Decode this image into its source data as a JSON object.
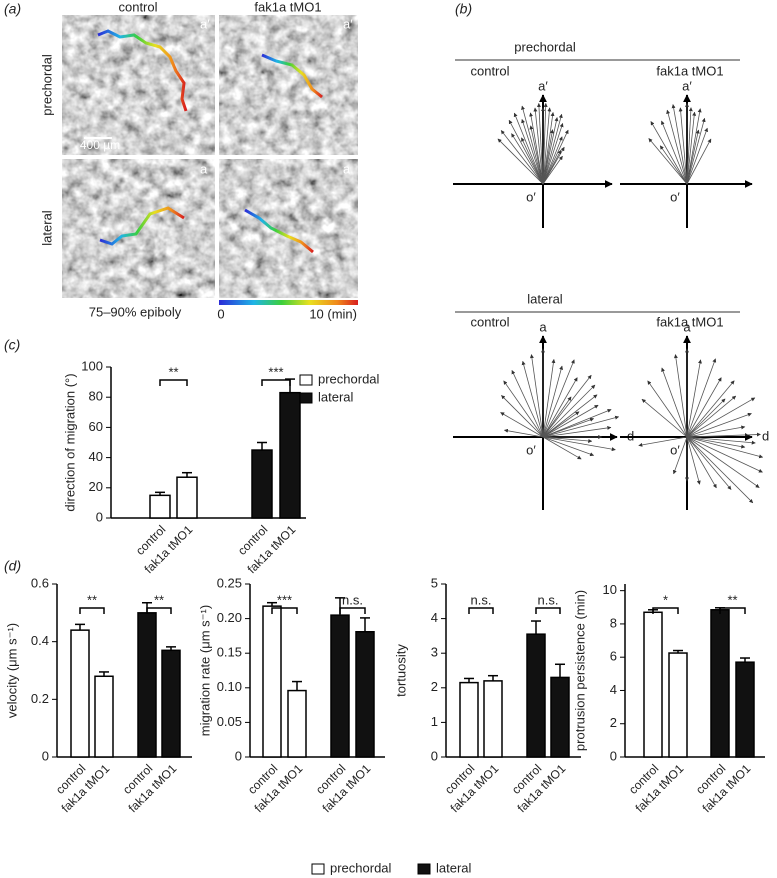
{
  "panel_labels": [
    "(a)",
    "(b)",
    "(c)",
    "(d)"
  ],
  "panel_a": {
    "columns": [
      "control",
      "fak1a tMO1"
    ],
    "rows": [
      "prechordal",
      "lateral"
    ],
    "scale_bar": "400 µm",
    "corner_labels": [
      "a′",
      "a′",
      "a",
      "a"
    ],
    "stage": "75–90% epiboly",
    "colorbar": [
      "0",
      "10 (min)"
    ]
  },
  "panel_b": {
    "groups": [
      {
        "title": "prechordal",
        "diagrams": [
          {
            "label": "control",
            "axis_up": "a′",
            "origin": "o′",
            "angles": [
              -45,
              -38,
              -32,
              -28,
              -22,
              -18,
              -15,
              -10,
              -6,
              -3,
              0,
              2,
              5,
              8,
              12,
              15,
              18,
              22,
              25,
              30,
              35,
              -25,
              -12,
              10,
              28
            ],
            "lengths": [
              0.75,
              0.8,
              0.7,
              0.85,
              0.9,
              0.8,
              0.95,
              0.85,
              0.9,
              0.95,
              0.9,
              0.95,
              0.9,
              0.85,
              0.8,
              0.85,
              0.75,
              0.6,
              0.7,
              0.5,
              0.4,
              0.6,
              0.7,
              0.65,
              0.45
            ]
          },
          {
            "label": "fak1a tMO1",
            "axis_up": "a′",
            "origin": "o′",
            "angles": [
              -40,
              -30,
              -22,
              -15,
              -10,
              -5,
              0,
              3,
              6,
              10,
              15,
              20,
              28,
              -35,
              12
            ],
            "lengths": [
              0.7,
              0.85,
              0.8,
              0.9,
              0.95,
              0.9,
              0.95,
              0.9,
              0.85,
              0.9,
              0.8,
              0.7,
              0.6,
              0.55,
              0.65
            ]
          }
        ]
      },
      {
        "title": "lateral",
        "diagrams": [
          {
            "label": "control",
            "axis_up": "a",
            "origin": "o′",
            "axis_right": "d",
            "angles": [
              -60,
              -45,
              -35,
              -25,
              -15,
              -8,
              0,
              8,
              15,
              22,
              30,
              38,
              45,
              52,
              60,
              68,
              75,
              82,
              90,
              100,
              110,
              120,
              -80,
              35,
              55,
              70,
              95
            ],
            "lengths": [
              0.5,
              0.6,
              0.7,
              0.75,
              0.8,
              0.85,
              0.9,
              0.8,
              0.75,
              0.85,
              0.7,
              0.8,
              0.75,
              0.7,
              0.65,
              0.75,
              0.8,
              0.7,
              0.6,
              0.75,
              0.55,
              0.45,
              0.4,
              0.5,
              0.45,
              0.55,
              0.5
            ]
          },
          {
            "label": "fak1a tMO1",
            "axis_up": "a",
            "origin": "o′",
            "axis_right": "d",
            "angles": [
              -50,
              -35,
              -20,
              -8,
              0,
              10,
              20,
              30,
              40,
              50,
              60,
              70,
              80,
              88,
              95,
              105,
              115,
              125,
              135,
              150,
              165,
              180,
              200,
              -100,
              45,
              100,
              140
            ],
            "lengths": [
              0.6,
              0.7,
              0.75,
              0.85,
              0.9,
              0.8,
              0.85,
              0.7,
              0.75,
              0.65,
              0.8,
              0.7,
              0.6,
              0.75,
              0.7,
              0.8,
              0.85,
              0.9,
              0.95,
              0.6,
              0.5,
              0.45,
              0.4,
              0.5,
              0.55,
              0.6,
              0.7
            ]
          }
        ]
      }
    ]
  },
  "chart_data": [
    {
      "type": "bar",
      "ylabel": "direction of migration (°)",
      "categories": [
        "control",
        "fak1a tMO1"
      ],
      "series": [
        {
          "name": "prechordal",
          "color": "#ffffff",
          "values": [
            15,
            27
          ],
          "errors": [
            2,
            3
          ],
          "significance": "**"
        },
        {
          "name": "lateral",
          "color": "#111111",
          "values": [
            45,
            83
          ],
          "errors": [
            5,
            9
          ],
          "significance": "***"
        }
      ],
      "ylim": [
        0,
        100
      ],
      "yticks": [
        0,
        20,
        40,
        60,
        80,
        100
      ],
      "legend": "upper right"
    },
    {
      "type": "bar",
      "ylabel": "velocity (μm s⁻¹)",
      "categories": [
        "control",
        "fak1a tMO1"
      ],
      "series": [
        {
          "name": "prechordal",
          "color": "#ffffff",
          "values": [
            0.44,
            0.28
          ],
          "errors": [
            0.02,
            0.015
          ],
          "significance": "**"
        },
        {
          "name": "lateral",
          "color": "#111111",
          "values": [
            0.5,
            0.37
          ],
          "errors": [
            0.035,
            0.012
          ],
          "significance": "**"
        }
      ],
      "ylim": [
        0,
        0.6
      ],
      "yticks": [
        0,
        0.2,
        0.4,
        0.6
      ]
    },
    {
      "type": "bar",
      "ylabel": "migration rate (μm s⁻¹)",
      "categories": [
        "control",
        "fak1a tMO1"
      ],
      "series": [
        {
          "name": "prechordal",
          "color": "#ffffff",
          "values": [
            0.218,
            0.096
          ],
          "errors": [
            0.005,
            0.013
          ],
          "significance": "***"
        },
        {
          "name": "lateral",
          "color": "#111111",
          "values": [
            0.205,
            0.181
          ],
          "errors": [
            0.025,
            0.02
          ],
          "significance": "n.s."
        }
      ],
      "ylim": [
        0,
        0.25
      ],
      "yticks": [
        0,
        0.05,
        {
          "value": 0.1,
          "label": "0.10"
        },
        0.15,
        {
          "value": 0.2,
          "label": "0.20"
        },
        0.25
      ]
    },
    {
      "type": "bar",
      "ylabel": "tortuosity",
      "categories": [
        "control",
        "fak1a tMO1"
      ],
      "series": [
        {
          "name": "prechordal",
          "color": "#ffffff",
          "values": [
            2.15,
            2.2
          ],
          "errors": [
            0.12,
            0.15
          ],
          "significance": "n.s."
        },
        {
          "name": "lateral",
          "color": "#111111",
          "values": [
            3.55,
            2.3
          ],
          "errors": [
            0.38,
            0.38
          ],
          "significance": "n.s."
        }
      ],
      "ylim": [
        0,
        5
      ],
      "yticks": [
        0,
        1,
        2,
        3,
        4,
        5
      ]
    },
    {
      "type": "bar",
      "ylabel": "protrusion persistence (min)",
      "categories": [
        "control",
        "fak1a tMO1"
      ],
      "series": [
        {
          "name": "prechordal",
          "color": "#ffffff",
          "values": [
            8.7,
            6.25
          ],
          "errors": [
            0.15,
            0.15
          ],
          "significance": "*"
        },
        {
          "name": "lateral",
          "color": "#111111",
          "values": [
            8.85,
            5.7
          ],
          "errors": [
            0.12,
            0.25
          ],
          "significance": "**"
        }
      ],
      "ylim": [
        0,
        10.4
      ],
      "yticks": [
        0,
        2,
        4,
        6,
        8,
        10
      ]
    }
  ]
}
